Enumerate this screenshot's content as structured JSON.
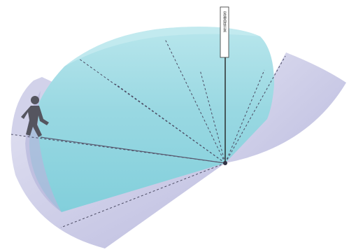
{
  "diagram": {
    "pole_label": "安装高度示意",
    "colors": {
      "far_zone": "#c9c9e6",
      "near_zone": "#8fd3df",
      "near_zone_light": "#b4e4ea",
      "zone_edge": "#a9a9d4",
      "dashed_line": "#4a4a62",
      "walker": "#55555f",
      "pole": "#222222"
    },
    "icons": {
      "walker": "person-walking-icon",
      "sensor": "sensor-icon"
    }
  }
}
